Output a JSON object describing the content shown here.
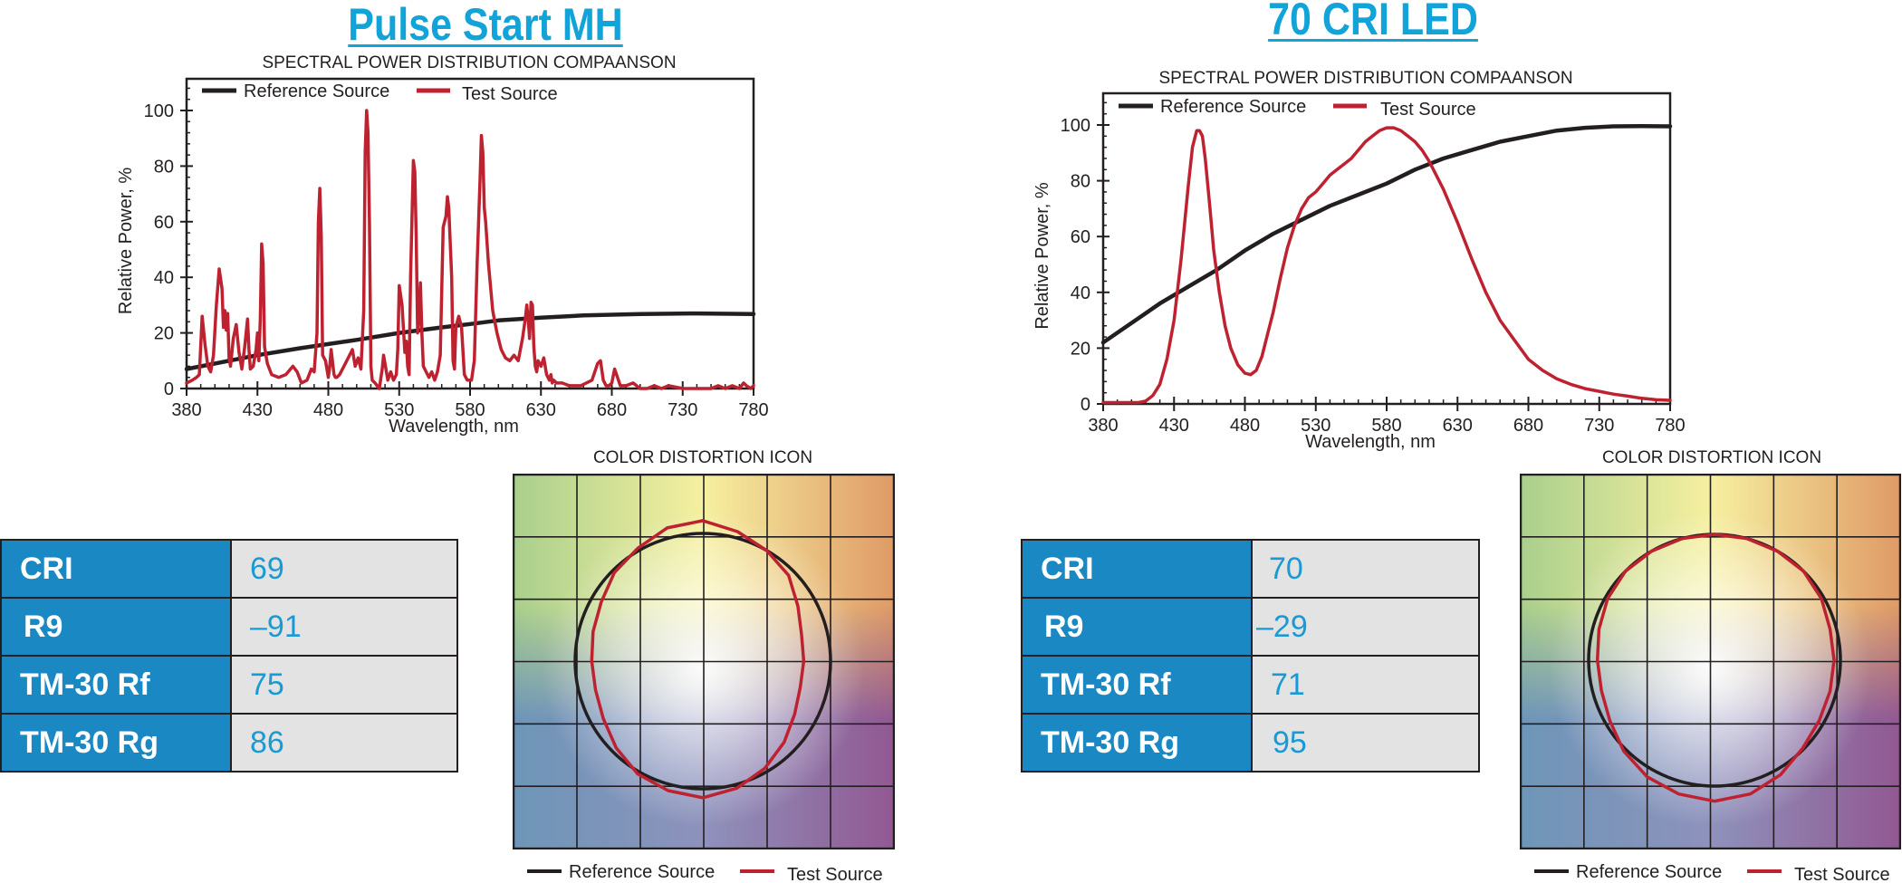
{
  "panels": [
    {
      "title": "Pulse Start MH",
      "metrics": [
        {
          "label": "CRI",
          "value": "69"
        },
        {
          "label": "R9",
          "value": "–91"
        },
        {
          "label": "TM-30 Rf",
          "value": "75"
        },
        {
          "label": "TM-30 Rg",
          "value": "86"
        }
      ],
      "icon": {
        "title": "COLOR DISTORTION ICON",
        "legend": [
          "Reference Source",
          "Test Source"
        ]
      }
    },
    {
      "title": "70 CRI LED",
      "metrics": [
        {
          "label": "CRI",
          "value": "70"
        },
        {
          "label": "R9",
          "value": "–29"
        },
        {
          "label": "TM-30 Rf",
          "value": "71"
        },
        {
          "label": "TM-30 Rg",
          "value": "95"
        }
      ],
      "icon": {
        "title": "COLOR DISTORTION ICON",
        "legend": [
          "Reference Source",
          "Test Source"
        ]
      }
    }
  ],
  "colors": {
    "reference": "#231f20",
    "test": "#be2230",
    "title": "#12a3d8",
    "label_fill": "#1a88c2",
    "value_fill": "#e3e3e3",
    "value_text": "#1a9ad4"
  },
  "chart_data": [
    {
      "type": "line",
      "title": "SPECTRAL POWER DISTRIBUTION COMPAANSON",
      "xlabel": "Wavelength, nm",
      "ylabel": "Relative Power, %",
      "xlim": [
        380,
        780
      ],
      "ylim": [
        0,
        110
      ],
      "xticks": [
        380,
        430,
        480,
        530,
        580,
        630,
        680,
        730,
        780
      ],
      "yticks": [
        0,
        20,
        40,
        60,
        80,
        100
      ],
      "xtick_labels": [
        "380",
        "430",
        "480",
        "530",
        "580",
        "630",
        "680",
        "730",
        "780"
      ],
      "ytick_labels": [
        "0",
        "20",
        "40",
        "60",
        "80",
        "100"
      ],
      "legend": "top-left",
      "grid": false,
      "series": [
        {
          "name": "Reference Source",
          "x": [
            380,
            400,
            430,
            460,
            480,
            500,
            530,
            560,
            580,
            600,
            630,
            660,
            700,
            740,
            780
          ],
          "y": [
            7,
            9,
            12,
            14.5,
            16,
            17.5,
            20,
            22,
            23.2,
            24.5,
            25.5,
            26.3,
            26.8,
            27,
            26.8
          ]
        },
        {
          "name": "Test Source",
          "x": [
            380,
            384,
            387,
            389,
            391,
            393,
            395,
            397,
            399,
            401,
            403,
            405,
            406,
            407,
            408,
            409,
            410,
            411,
            413,
            415,
            417,
            419,
            421,
            423,
            424,
            425,
            427,
            429,
            430,
            431,
            432,
            433,
            434,
            435,
            437,
            440,
            445,
            450,
            455,
            458,
            461,
            465,
            468,
            470,
            472,
            473,
            474,
            475,
            476,
            478,
            480,
            481,
            482,
            484,
            485,
            486,
            488,
            492,
            497,
            499,
            501,
            503,
            505,
            506,
            507,
            508,
            509,
            510,
            511,
            513,
            516,
            518,
            519,
            520,
            522,
            524,
            526,
            528,
            529,
            530,
            532,
            534,
            535,
            536,
            537,
            538,
            540,
            541,
            542,
            543,
            544,
            545,
            546,
            547,
            549,
            551,
            553,
            555,
            557,
            559,
            561,
            563,
            564,
            565,
            567,
            568,
            569,
            570,
            572,
            574,
            576,
            578,
            581,
            583,
            585,
            587,
            588,
            589,
            590,
            591,
            593,
            596,
            599,
            602,
            605,
            608,
            611,
            614,
            617,
            619,
            620,
            621,
            622,
            623,
            624,
            625,
            626,
            627,
            628,
            630,
            632,
            634,
            636,
            637,
            638,
            639,
            641,
            645,
            650,
            654,
            658,
            662,
            666,
            670,
            672,
            674,
            676,
            678,
            680,
            682,
            684,
            686,
            690,
            695,
            700,
            705,
            710,
            715,
            720,
            730,
            740,
            745,
            750,
            755,
            760,
            765,
            770,
            773,
            775,
            778,
            780
          ],
          "y": [
            2,
            3,
            4,
            5,
            26,
            16,
            8,
            6,
            12,
            30,
            43,
            36,
            22,
            28,
            21,
            27,
            11,
            8,
            18,
            23,
            13,
            7,
            15,
            25,
            14,
            7,
            8,
            14,
            20,
            10,
            25,
            52,
            45,
            15,
            9,
            5,
            4,
            5,
            8,
            6,
            2,
            3,
            7,
            6,
            20,
            60,
            72,
            55,
            12,
            10,
            4,
            8,
            14,
            5,
            4,
            4,
            5,
            9,
            14,
            8,
            11,
            7,
            28,
            85,
            100,
            92,
            60,
            8,
            3,
            2,
            0,
            7,
            12,
            9,
            3,
            6,
            3,
            5,
            14,
            37,
            30,
            13,
            17,
            8,
            5,
            40,
            82,
            78,
            55,
            20,
            25,
            38,
            20,
            8,
            6,
            4,
            6,
            3,
            6,
            12,
            58,
            62,
            69,
            65,
            40,
            10,
            7,
            22,
            26,
            22,
            5,
            3,
            3,
            10,
            45,
            75,
            91,
            85,
            65,
            60,
            45,
            28,
            20,
            14,
            11,
            10,
            12,
            10,
            18,
            25,
            30,
            25,
            18,
            31,
            30,
            15,
            8,
            6,
            10,
            8,
            11,
            5,
            3,
            5,
            2,
            3,
            2,
            2,
            1,
            1,
            1,
            2,
            3,
            9,
            10,
            3,
            1,
            1,
            2,
            7,
            4,
            1,
            1,
            2,
            0,
            0,
            1,
            0,
            1,
            0,
            0,
            0,
            0,
            1,
            0,
            1,
            0,
            2,
            1,
            0,
            1
          ]
        }
      ]
    },
    {
      "type": "line",
      "title": "SPECTRAL POWER DISTRIBUTION COMPAANSON",
      "xlabel": "Wavelength, nm",
      "ylabel": "Relative Power, %",
      "xlim": [
        380,
        780
      ],
      "ylim": [
        0,
        110
      ],
      "xticks": [
        380,
        430,
        480,
        530,
        580,
        630,
        680,
        730,
        780
      ],
      "yticks": [
        0,
        20,
        40,
        60,
        80,
        100
      ],
      "xtick_labels": [
        "380",
        "430",
        "480",
        "530",
        "580",
        "630",
        "680",
        "730",
        "780"
      ],
      "ytick_labels": [
        "0",
        "20",
        "40",
        "60",
        "80",
        "100"
      ],
      "legend": "top-left",
      "grid": false,
      "series": [
        {
          "name": "Reference Source",
          "x": [
            380,
            400,
            420,
            440,
            460,
            480,
            500,
            520,
            540,
            560,
            580,
            600,
            620,
            640,
            660,
            680,
            700,
            720,
            740,
            760,
            780
          ],
          "y": [
            22,
            29,
            36,
            42,
            48,
            55,
            61,
            66,
            71,
            75,
            79,
            84,
            88,
            91,
            94,
            96,
            98,
            99,
            99.5,
            99.6,
            99.5
          ]
        },
        {
          "name": "Test Source",
          "x": [
            380,
            395,
            405,
            410,
            415,
            420,
            425,
            430,
            435,
            440,
            443,
            446,
            448,
            450,
            452,
            455,
            458,
            462,
            466,
            470,
            475,
            480,
            484,
            488,
            492,
            496,
            500,
            505,
            510,
            515,
            520,
            525,
            530,
            535,
            540,
            545,
            550,
            555,
            560,
            565,
            570,
            575,
            580,
            585,
            590,
            595,
            600,
            605,
            610,
            620,
            630,
            640,
            650,
            660,
            670,
            680,
            690,
            700,
            710,
            720,
            730,
            740,
            750,
            760,
            770,
            780
          ],
          "y": [
            0.5,
            0.5,
            0.5,
            1,
            3,
            7,
            16,
            30,
            52,
            78,
            92,
            98,
            98,
            96,
            88,
            72,
            55,
            40,
            28,
            20,
            14,
            11,
            10.5,
            12,
            17,
            25,
            33,
            45,
            56,
            64,
            70,
            74,
            76,
            79,
            82,
            84,
            86,
            88,
            91,
            94,
            96,
            98,
            99,
            99,
            98,
            96,
            94,
            91,
            87,
            77,
            65,
            52,
            40,
            30,
            23,
            16,
            12,
            9,
            7,
            5.5,
            4.5,
            3.5,
            2.8,
            2,
            1.5,
            1.3
          ]
        }
      ]
    }
  ]
}
